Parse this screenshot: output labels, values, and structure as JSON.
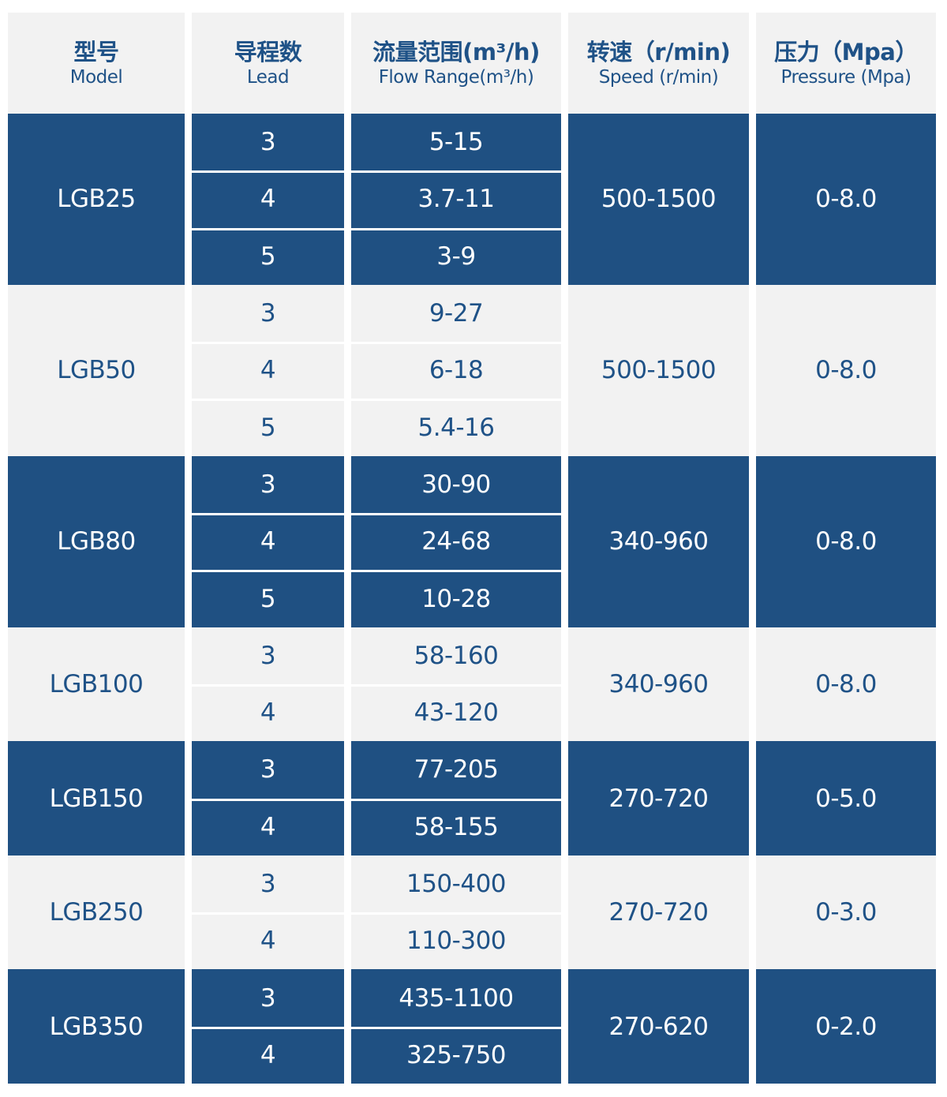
{
  "table": {
    "headers": [
      {
        "cn": "型号",
        "en": "Model"
      },
      {
        "cn": "导程数",
        "en": "Lead"
      },
      {
        "cn": "流量范围(m³/h)",
        "en": "Flow Range(m³/h)"
      },
      {
        "cn": "转速（r/min)",
        "en": "Speed (r/min)"
      },
      {
        "cn": "压力（Mpa）",
        "en": "Pressure (Mpa)"
      }
    ],
    "groups": [
      {
        "model": "LGB25",
        "speed": "500-1500",
        "pressure": "0-8.0",
        "rows": [
          {
            "lead": "3",
            "flow": "5-15"
          },
          {
            "lead": "4",
            "flow": "3.7-11"
          },
          {
            "lead": "5",
            "flow": "3-9"
          }
        ]
      },
      {
        "model": "LGB50",
        "speed": "500-1500",
        "pressure": "0-8.0",
        "rows": [
          {
            "lead": "3",
            "flow": "9-27"
          },
          {
            "lead": "4",
            "flow": "6-18"
          },
          {
            "lead": "5",
            "flow": "5.4-16"
          }
        ]
      },
      {
        "model": "LGB80",
        "speed": "340-960",
        "pressure": "0-8.0",
        "rows": [
          {
            "lead": "3",
            "flow": "30-90"
          },
          {
            "lead": "4",
            "flow": "24-68"
          },
          {
            "lead": "5",
            "flow": "10-28"
          }
        ]
      },
      {
        "model": "LGB100",
        "speed": "340-960",
        "pressure": "0-8.0",
        "rows": [
          {
            "lead": "3",
            "flow": "58-160"
          },
          {
            "lead": "4",
            "flow": "43-120"
          }
        ]
      },
      {
        "model": "LGB150",
        "speed": "270-720",
        "pressure": "0-5.0",
        "rows": [
          {
            "lead": "3",
            "flow": "77-205"
          },
          {
            "lead": "4",
            "flow": "58-155"
          }
        ]
      },
      {
        "model": "LGB250",
        "speed": "270-720",
        "pressure": "0-3.0",
        "rows": [
          {
            "lead": "3",
            "flow": "150-400"
          },
          {
            "lead": "4",
            "flow": "110-300"
          }
        ]
      },
      {
        "model": "LGB350",
        "speed": "270-620",
        "pressure": "0-2.0",
        "rows": [
          {
            "lead": "3",
            "flow": "435-1100"
          },
          {
            "lead": "4",
            "flow": "325-750"
          }
        ]
      }
    ]
  },
  "colors": {
    "dark_band": "#1f5082",
    "light_band": "#f2f2f2",
    "light_text": "#1f5287",
    "dark_text": "#ffffff"
  }
}
